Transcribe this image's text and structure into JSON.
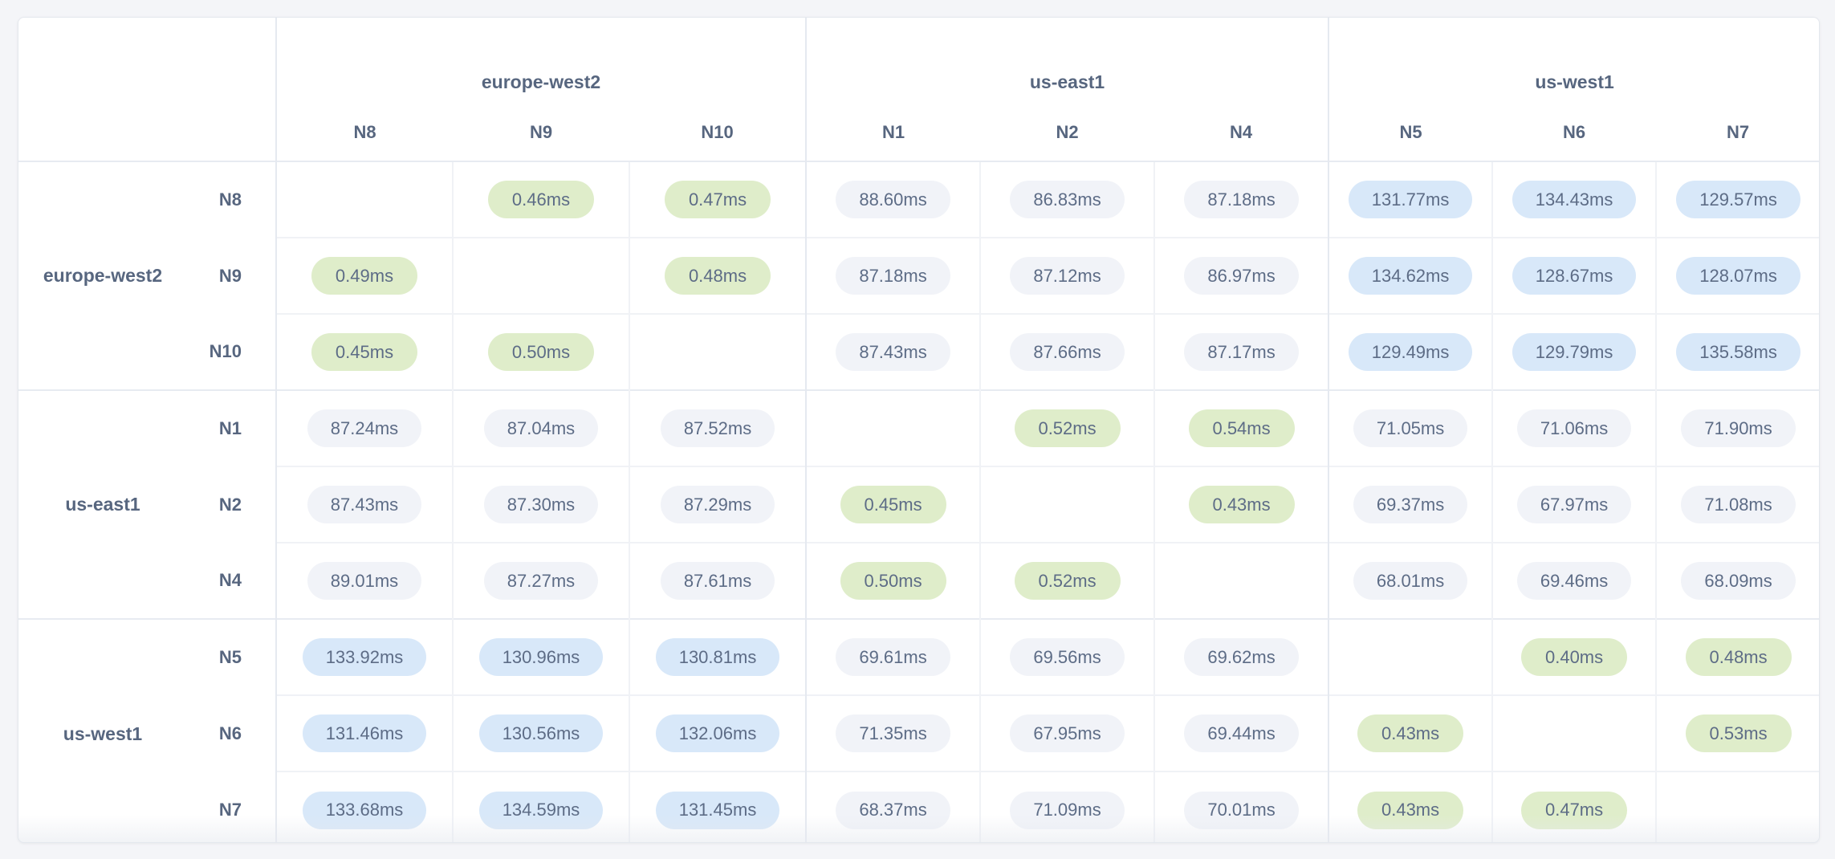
{
  "colors": {
    "page_background": "#f4f5f8",
    "card_background": "#ffffff",
    "intra_region_pill": "#dfedca",
    "mid_latency_pill": "#f1f3f8",
    "high_latency_pill": "#d8e8f9",
    "label_text": "#57667f",
    "value_text": "#5d6c86"
  },
  "table": {
    "unit": "ms",
    "column_groups": [
      {
        "region": "europe-west2",
        "nodes": [
          "N8",
          "N9",
          "N10"
        ]
      },
      {
        "region": "us-east1",
        "nodes": [
          "N1",
          "N2",
          "N4"
        ]
      },
      {
        "region": "us-west1",
        "nodes": [
          "N5",
          "N6",
          "N7"
        ]
      }
    ],
    "row_groups": [
      {
        "region": "europe-west2",
        "rows": [
          {
            "node": "N8",
            "values": [
              "",
              "0.46ms",
              "0.47ms",
              "88.60ms",
              "86.83ms",
              "87.18ms",
              "131.77ms",
              "134.43ms",
              "129.57ms"
            ]
          },
          {
            "node": "N9",
            "values": [
              "0.49ms",
              "",
              "0.48ms",
              "87.18ms",
              "87.12ms",
              "86.97ms",
              "134.62ms",
              "128.67ms",
              "128.07ms"
            ]
          },
          {
            "node": "N10",
            "values": [
              "0.45ms",
              "0.50ms",
              "",
              "87.43ms",
              "87.66ms",
              "87.17ms",
              "129.49ms",
              "129.79ms",
              "135.58ms"
            ]
          }
        ]
      },
      {
        "region": "us-east1",
        "rows": [
          {
            "node": "N1",
            "values": [
              "87.24ms",
              "87.04ms",
              "87.52ms",
              "",
              "0.52ms",
              "0.54ms",
              "71.05ms",
              "71.06ms",
              "71.90ms"
            ]
          },
          {
            "node": "N2",
            "values": [
              "87.43ms",
              "87.30ms",
              "87.29ms",
              "0.45ms",
              "",
              "0.43ms",
              "69.37ms",
              "67.97ms",
              "71.08ms"
            ]
          },
          {
            "node": "N4",
            "values": [
              "89.01ms",
              "87.27ms",
              "87.61ms",
              "0.50ms",
              "0.52ms",
              "",
              "68.01ms",
              "69.46ms",
              "68.09ms"
            ]
          }
        ]
      },
      {
        "region": "us-west1",
        "rows": [
          {
            "node": "N5",
            "values": [
              "133.92ms",
              "130.96ms",
              "130.81ms",
              "69.61ms",
              "69.56ms",
              "69.62ms",
              "",
              "0.40ms",
              "0.48ms"
            ]
          },
          {
            "node": "N6",
            "values": [
              "131.46ms",
              "130.56ms",
              "132.06ms",
              "71.35ms",
              "67.95ms",
              "69.44ms",
              "0.43ms",
              "",
              "0.53ms"
            ]
          },
          {
            "node": "N7",
            "values": [
              "133.68ms",
              "134.59ms",
              "131.45ms",
              "68.37ms",
              "71.09ms",
              "70.01ms",
              "0.43ms",
              "0.47ms",
              ""
            ]
          }
        ]
      }
    ]
  }
}
